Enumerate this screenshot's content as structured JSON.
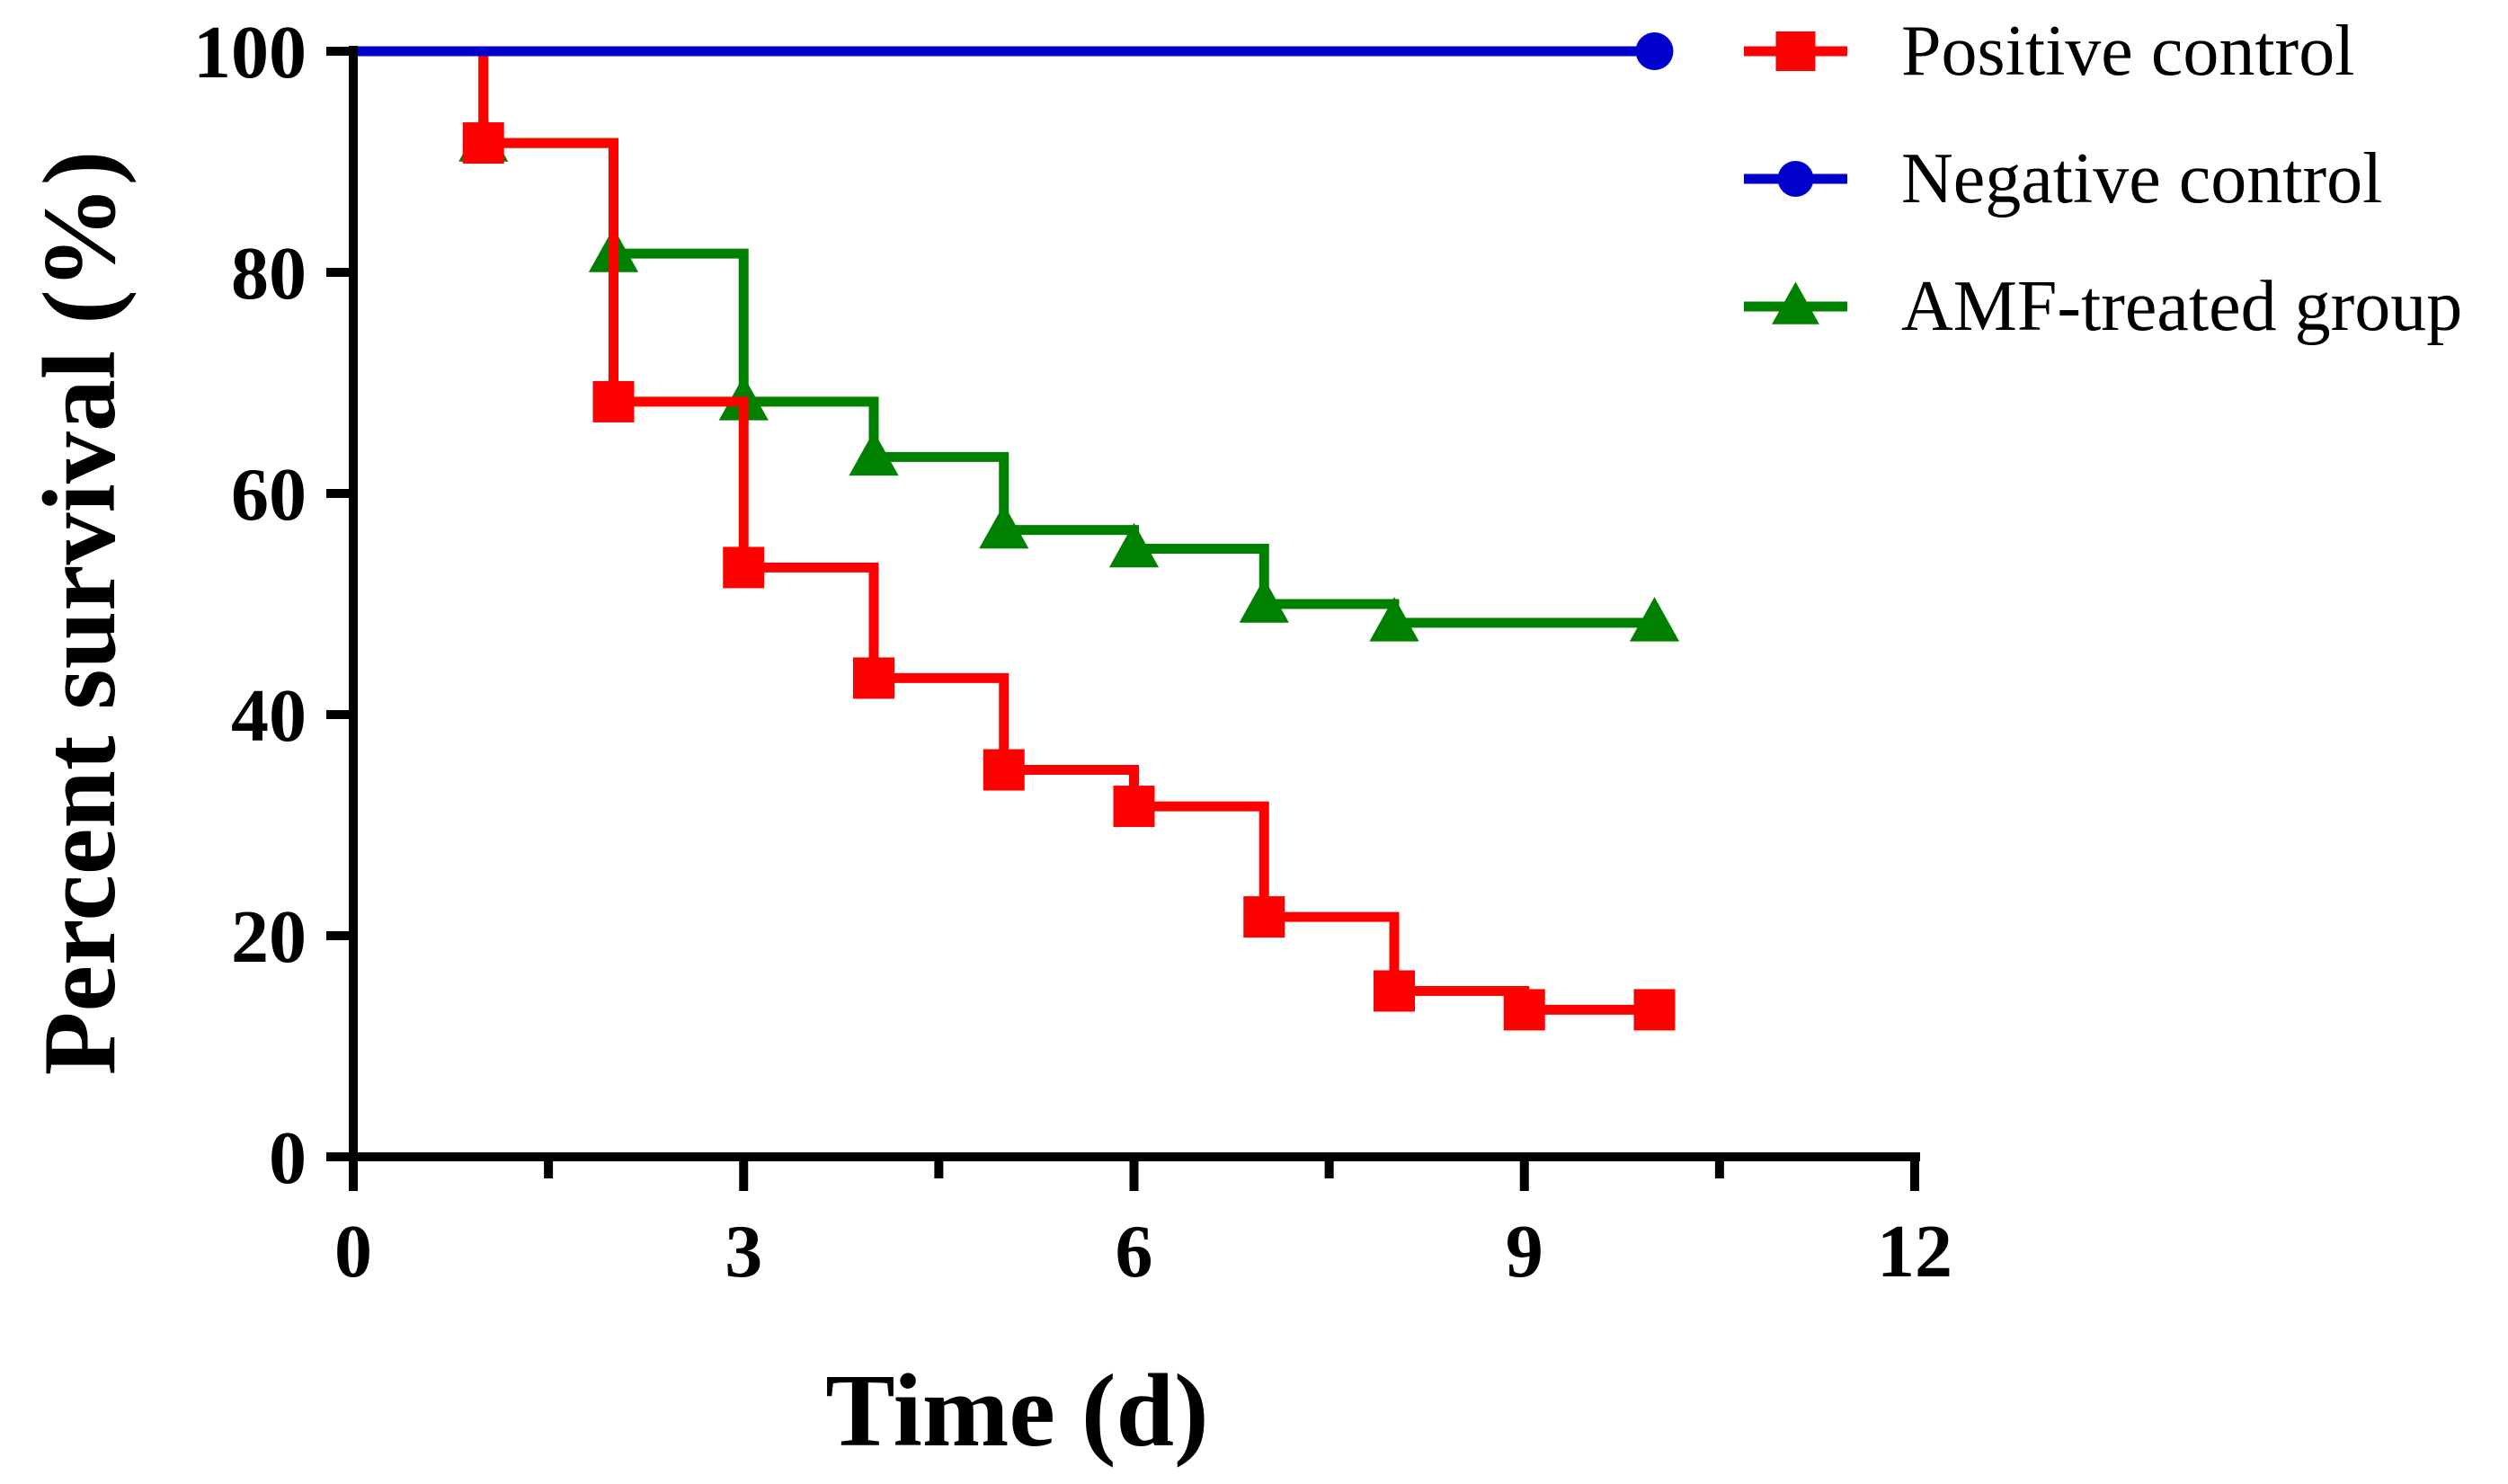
{
  "chart_data": {
    "type": "line",
    "subtype": "step (Kaplan-Meier survival curve)",
    "title": "",
    "xlabel": "Time (d)",
    "ylabel": "Percent survival (%)",
    "xlim": [
      0,
      12
    ],
    "ylim": [
      0,
      100
    ],
    "xticks": [
      0,
      3,
      6,
      9,
      12
    ],
    "xticks_minor": [
      1.5,
      4.5,
      7.5,
      10.5
    ],
    "yticks": [
      0,
      20,
      40,
      60,
      80,
      100
    ],
    "grid": false,
    "legend_position": "top-right",
    "series": [
      {
        "name": "Positive control",
        "color": "#ff0000",
        "marker": "square",
        "x": [
          0,
          1,
          2,
          3,
          4,
          5,
          6,
          7,
          8,
          9,
          10
        ],
        "y": [
          100,
          91.7,
          68.3,
          53.3,
          43.3,
          35,
          31.7,
          21.7,
          15,
          13.3,
          13.3
        ],
        "marked_x": [
          1,
          2,
          3,
          4,
          5,
          6,
          7,
          8,
          9,
          10
        ]
      },
      {
        "name": "Negative control",
        "color": "#0000cc",
        "marker": "circle",
        "x": [
          0,
          10
        ],
        "y": [
          100,
          100
        ],
        "marked_x": [
          10
        ]
      },
      {
        "name": "AMF-treated group",
        "color": "#008000",
        "marker": "triangle",
        "x": [
          0,
          1,
          2,
          3,
          4,
          5,
          6,
          7,
          8,
          10
        ],
        "y": [
          100,
          91.7,
          81.7,
          68.3,
          63.3,
          56.7,
          55,
          50,
          48.3,
          48.3
        ],
        "marked_x": [
          1,
          2,
          3,
          4,
          5,
          6,
          7,
          8,
          10
        ]
      }
    ]
  }
}
